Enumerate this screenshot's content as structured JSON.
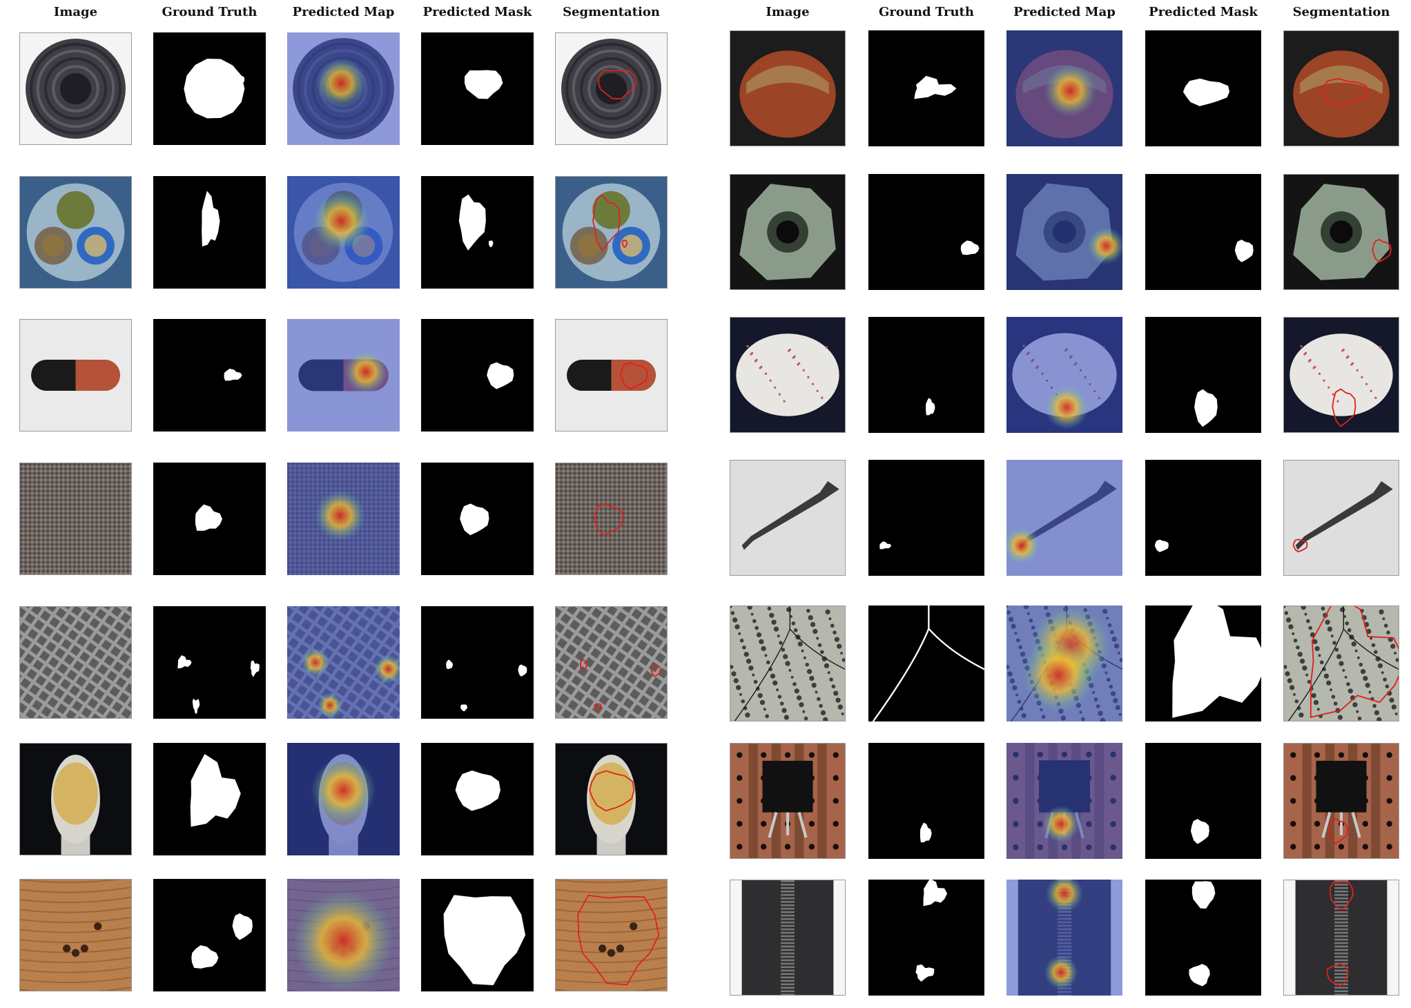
{
  "figure": {
    "left_panel": {
      "headers": [
        "Image",
        "Ground Truth",
        "Predicted Map",
        "Predicted Mask",
        "Segmentation"
      ],
      "rows": [
        {
          "category": "bottle"
        },
        {
          "category": "cable"
        },
        {
          "category": "capsule"
        },
        {
          "category": "carpet"
        },
        {
          "category": "grid"
        },
        {
          "category": "toothbrush"
        },
        {
          "category": "wood"
        }
      ]
    },
    "right_panel": {
      "headers": [
        "Image",
        "Ground Truth",
        "Predicted Map",
        "Predicted Mask",
        "Segmentation"
      ],
      "rows": [
        {
          "category": "hazelnut"
        },
        {
          "category": "metal_nut"
        },
        {
          "category": "pill"
        },
        {
          "category": "screw"
        },
        {
          "category": "tile"
        },
        {
          "category": "transistor"
        },
        {
          "category": "zipper"
        }
      ]
    },
    "colors": {
      "mask_fg": "#ffffff",
      "mask_bg": "#000000",
      "contour": "#e0201c",
      "heat_hot": "#d7261e",
      "heat_warm": "#f2c12e",
      "heat_cold": "#3a4fc4"
    }
  }
}
